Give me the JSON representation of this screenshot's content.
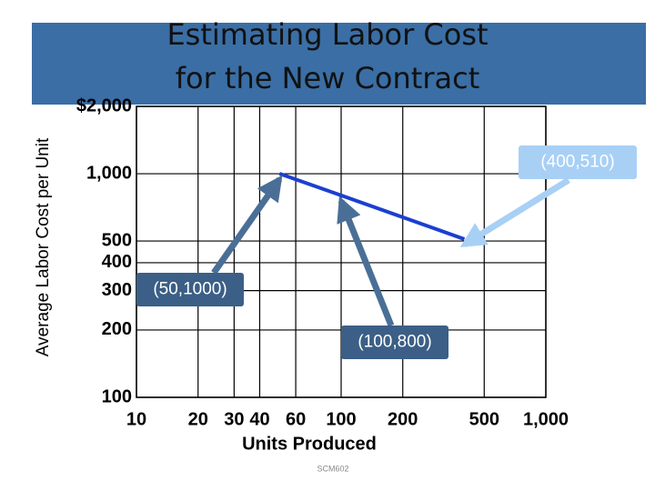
{
  "chart_data": {
    "type": "line",
    "title": "Estimating Labor Cost",
    "subtitle": "for the New Contract",
    "x_label": "Units  Produced",
    "y_label": "Average Labor Cost per Unit",
    "footer": "SCM602",
    "log_x": true,
    "log_y": true,
    "grid": true,
    "xlim": [
      10,
      1000
    ],
    "xticks": [
      10,
      20,
      30,
      40,
      60,
      100,
      200,
      500,
      {
        "value": 1000,
        "label": "1,000"
      }
    ],
    "ylim": [
      100,
      2000
    ],
    "yticks": [
      {
        "value": 2000,
        "label": "$2,000"
      },
      {
        "value": 1000,
        "label": "1,000"
      },
      500,
      400,
      300,
      200,
      100
    ],
    "series": [
      {
        "color": "#1c3fd0",
        "x": [
          50,
          100,
          400
        ],
        "values": [
          1000,
          800,
          510
        ],
        "value_labels": [
          "(50,1000)",
          "(100,800)",
          "(400,510)"
        ]
      }
    ]
  }
}
